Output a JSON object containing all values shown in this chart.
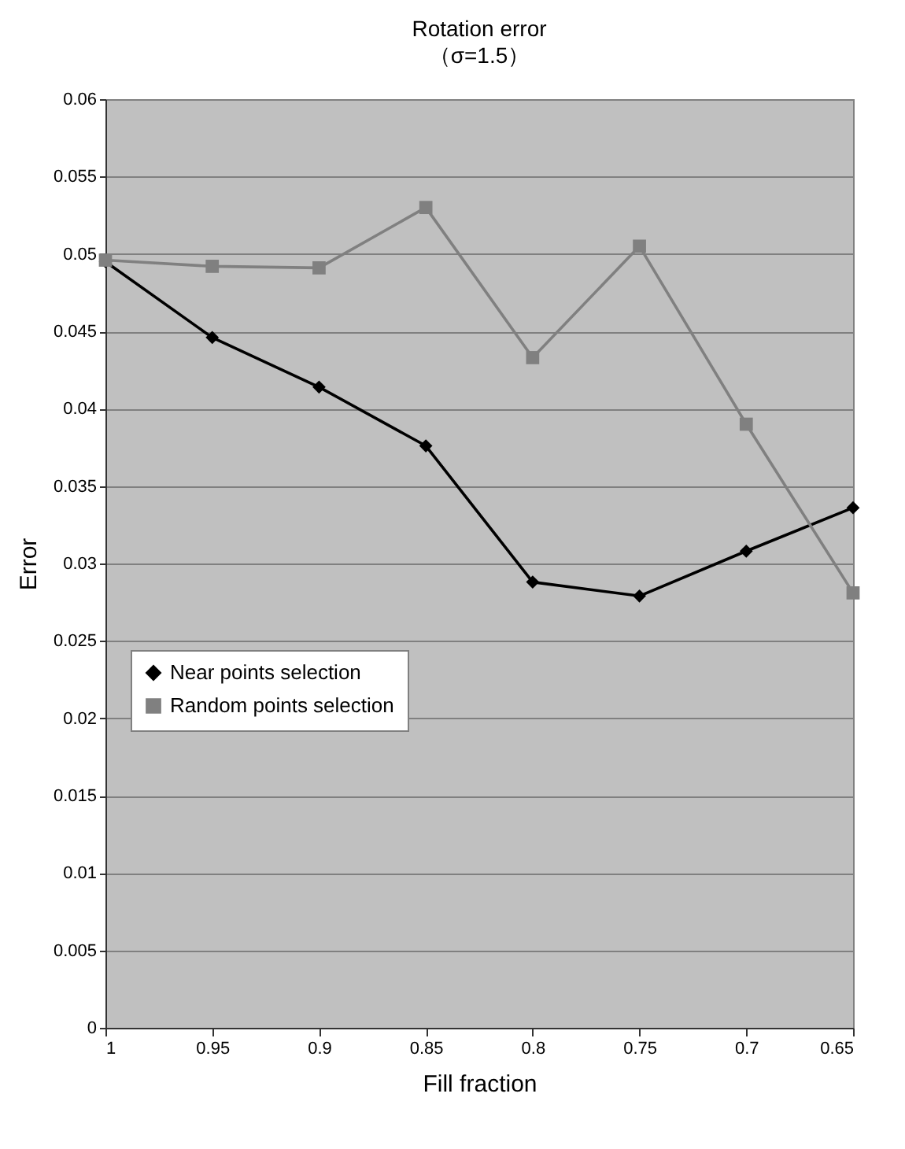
{
  "chart_data": {
    "type": "line",
    "title": "Rotation error",
    "subtitle": "（σ=1.5）",
    "xlabel": "Fill fraction",
    "ylabel": "Error",
    "x": [
      1,
      0.95,
      0.9,
      0.85,
      0.8,
      0.75,
      0.7,
      0.65
    ],
    "series": [
      {
        "name": "Near points selection",
        "color": "#000000",
        "marker": "diamond",
        "values": [
          0.0495,
          0.0446,
          0.0414,
          0.0376,
          0.0288,
          0.0279,
          0.0308,
          0.0336
        ]
      },
      {
        "name": "Random points selection",
        "color": "#808080",
        "marker": "square",
        "values": [
          0.0496,
          0.0492,
          0.0491,
          0.053,
          0.0433,
          0.0505,
          0.039,
          0.0281
        ]
      }
    ],
    "xlim": [
      1,
      0.65
    ],
    "xticks": [
      1,
      0.95,
      0.9,
      0.85,
      0.8,
      0.75,
      0.7,
      0.65
    ],
    "ylim": [
      0,
      0.06
    ],
    "yticks": [
      0,
      0.005,
      0.01,
      0.015,
      0.02,
      0.025,
      0.03,
      0.035,
      0.04,
      0.045,
      0.05,
      0.055,
      0.06
    ],
    "grid": "y",
    "legend": "bottom left",
    "line_style": "solid"
  }
}
